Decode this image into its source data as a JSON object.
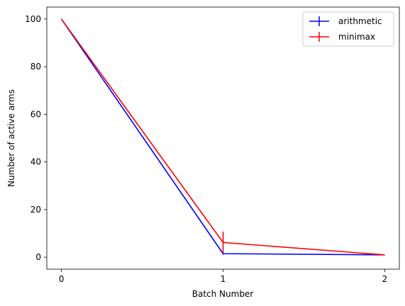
{
  "chart_data": {
    "type": "line",
    "title": "",
    "xlabel": "Batch Number",
    "ylabel": "Number of active arms",
    "x": [
      0,
      1,
      2
    ],
    "x_ticks": [
      "0",
      "1",
      "2"
    ],
    "y_ticks": [
      "0",
      "20",
      "40",
      "60",
      "80",
      "100"
    ],
    "xlim": [
      -0.09,
      2.09
    ],
    "ylim": [
      -5,
      105
    ],
    "grid": false,
    "legend_position": "top-right",
    "series": [
      {
        "name": "arithmetic",
        "color": "#0000ff",
        "values": [
          100,
          1.5,
          1
        ],
        "errors": [
          0,
          0.4,
          0
        ]
      },
      {
        "name": "minimax",
        "color": "#ff0000",
        "values": [
          100,
          6.2,
          1
        ],
        "errors": [
          0,
          4.5,
          0
        ]
      }
    ]
  }
}
